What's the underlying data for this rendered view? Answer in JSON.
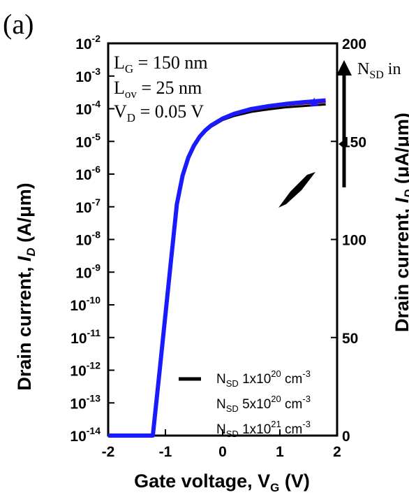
{
  "chart_data": {
    "type": "line",
    "panel_label": "(a)",
    "xlabel": "Gate voltage, V",
    "xlabel_sub": "G",
    "xlabel_unit": " (V)",
    "ylabel_left": "Drain current, ",
    "ylabel_left_sym": "I",
    "ylabel_left_sub": "D",
    "ylabel_left_unit": " (A/μm)",
    "ylabel_right": "Drain current, ",
    "ylabel_right_sym": "I",
    "ylabel_right_sub": "D",
    "ylabel_right_unit": " (μA/μm)",
    "xlim": [
      -2,
      2
    ],
    "ylim_left_log10": [
      -14,
      -2
    ],
    "ylim_right": [
      0,
      200
    ],
    "x_ticks": [
      "-2",
      "-1",
      "0",
      "1",
      "2"
    ],
    "y_left_ticks": [
      {
        "base": "10",
        "exp": "-2"
      },
      {
        "base": "10",
        "exp": "-3"
      },
      {
        "base": "10",
        "exp": "-4"
      },
      {
        "base": "10",
        "exp": "-5"
      },
      {
        "base": "10",
        "exp": "-6"
      },
      {
        "base": "10",
        "exp": "-7"
      },
      {
        "base": "10",
        "exp": "-8"
      },
      {
        "base": "10",
        "exp": "-9"
      },
      {
        "base": "10",
        "exp": "-10"
      },
      {
        "base": "10",
        "exp": "-11"
      },
      {
        "base": "10",
        "exp": "-12"
      },
      {
        "base": "10",
        "exp": "-13"
      },
      {
        "base": "10",
        "exp": "-14"
      }
    ],
    "y_right_ticks": [
      "200",
      "150",
      "100",
      "50",
      "0"
    ],
    "annotations": {
      "lg": {
        "main": "L",
        "sub": "G",
        "rest": " = 150 nm"
      },
      "lov": {
        "main": "L",
        "sub": "ov",
        "rest": " = 25 nm"
      },
      "vd": {
        "main": "V",
        "sub": "D",
        "rest": " = 0.05 V"
      },
      "arrow_label": {
        "main": "N",
        "sub": "SD",
        "rest": " in"
      }
    },
    "legend": [
      {
        "prefix": "N",
        "sub": "SD",
        "mid": " 1x10",
        "exp": "20",
        "unit": " cm",
        "uexp": "-3",
        "color": "#000000"
      },
      {
        "prefix": "N",
        "sub": "SD",
        "mid": " 5x10",
        "exp": "20",
        "unit": " cm",
        "uexp": "-3",
        "color": "#cc0000"
      },
      {
        "prefix": "N",
        "sub": "SD",
        "mid": " 1x10",
        "exp": "21",
        "unit": " cm",
        "uexp": "-3",
        "color": "#1a1aff"
      }
    ],
    "series": [
      {
        "axis": "left_log",
        "color": "#000000",
        "x": [
          -2.0,
          -1.5,
          -1.22,
          -1.1,
          -1.0,
          -0.9,
          -0.8,
          -0.7,
          -0.6,
          -0.5,
          -0.4,
          -0.3,
          -0.2,
          0.0,
          0.2,
          0.5,
          0.8,
          1.1,
          1.4,
          1.8
        ],
        "y": [
          1e-14,
          1e-14,
          1e-14,
          1e-12,
          5e-11,
          2.5e-09,
          1.2e-07,
          9e-07,
          3e-06,
          7e-06,
          1.3e-05,
          2e-05,
          2.8e-05,
          4.5e-05,
          6e-05,
          8e-05,
          9.5e-05,
          0.00011,
          0.00012,
          0.000135
        ]
      },
      {
        "axis": "left_log",
        "color": "#cc0000",
        "x": [
          -2.0,
          -1.5,
          -1.22,
          -1.1,
          -1.0,
          -0.9,
          -0.8,
          -0.7,
          -0.6,
          -0.5,
          -0.4,
          -0.3,
          -0.2,
          0.0,
          0.2,
          0.5,
          0.8,
          1.1,
          1.4,
          1.8
        ],
        "y": [
          1e-14,
          1e-14,
          1e-14,
          1e-12,
          5e-11,
          2.5e-09,
          1.2e-07,
          9e-07,
          3.1e-06,
          7.3e-06,
          1.35e-05,
          2.1e-05,
          3e-05,
          4.8e-05,
          6.6e-05,
          9e-05,
          0.00011,
          0.000128,
          0.000142,
          0.00016
        ]
      },
      {
        "axis": "left_log",
        "color": "#1a1aff",
        "x": [
          -2.0,
          -1.5,
          -1.22,
          -1.1,
          -1.0,
          -0.9,
          -0.8,
          -0.7,
          -0.6,
          -0.5,
          -0.4,
          -0.3,
          -0.2,
          0.0,
          0.2,
          0.5,
          0.8,
          1.1,
          1.4,
          1.8
        ],
        "y": [
          1e-14,
          1e-14,
          1e-14,
          1e-12,
          5e-11,
          2.5e-09,
          1.2e-07,
          9e-07,
          3.2e-06,
          7.5e-06,
          1.4e-05,
          2.2e-05,
          3.1e-05,
          5e-05,
          7e-05,
          9.8e-05,
          0.00012,
          0.00014,
          0.000158,
          0.00018
        ]
      }
    ]
  }
}
